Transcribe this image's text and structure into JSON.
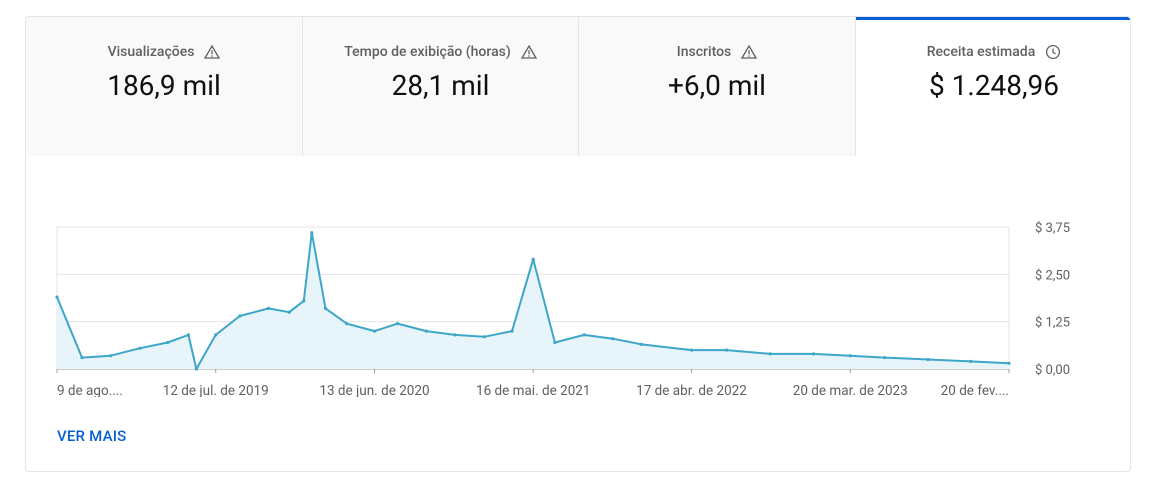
{
  "metrics": [
    {
      "label": "Visualizações",
      "value": "186,9 mil",
      "icon": "warning-icon"
    },
    {
      "label": "Tempo de exibição (horas)",
      "value": "28,1 mil",
      "icon": "warning-icon"
    },
    {
      "label": "Inscritos",
      "value": "+6,0 mil",
      "icon": "warning-icon"
    },
    {
      "label": "Receita estimada",
      "value": "$ 1.248,96",
      "icon": "clock-icon"
    }
  ],
  "colors": {
    "accent": "#065fd4",
    "line": "#3ea6c8",
    "fill": "#e7f4fa",
    "grid": "#e5e5e5"
  },
  "chart_data": {
    "type": "line",
    "title": "",
    "xlabel": "",
    "ylabel": "",
    "y_ticks": [
      "$ 0,00",
      "$ 1,25",
      "$ 2,50",
      "$ 3,75"
    ],
    "y_tick_values": [
      0,
      1.25,
      2.5,
      3.75
    ],
    "ylim": [
      0,
      3.75
    ],
    "x_ticks": [
      "9 de ago....",
      "12 de jul. de 2019",
      "13 de jun. de 2020",
      "16 de mai. de 2021",
      "17 de abr. de 2022",
      "20 de mar. de 2023",
      "20 de fev...."
    ],
    "x_tick_dates": [
      "2018-08-09",
      "2019-07-12",
      "2020-06-13",
      "2021-05-16",
      "2022-04-17",
      "2023-03-20",
      "2024-02-20"
    ],
    "grid": true,
    "series": [
      {
        "x": [
          "2018-08-09",
          "2018-10-01",
          "2018-12-01",
          "2019-02-01",
          "2019-04-01",
          "2019-05-15",
          "2019-06-01",
          "2019-07-12",
          "2019-09-01",
          "2019-11-01",
          "2019-12-15",
          "2020-01-15",
          "2020-02-01",
          "2020-03-01",
          "2020-04-15",
          "2020-06-13",
          "2020-08-01",
          "2020-10-01",
          "2020-12-01",
          "2021-02-01",
          "2021-04-01",
          "2021-05-16",
          "2021-07-01",
          "2021-09-01",
          "2021-11-01",
          "2022-01-01",
          "2022-04-17",
          "2022-07-01",
          "2022-10-01",
          "2023-01-01",
          "2023-03-20",
          "2023-06-01",
          "2023-09-01",
          "2023-12-01",
          "2024-02-20"
        ],
        "values": [
          1.9,
          0.3,
          0.35,
          0.55,
          0.7,
          0.9,
          0.0,
          0.9,
          1.4,
          1.6,
          1.5,
          1.8,
          3.6,
          1.6,
          1.2,
          1.0,
          1.2,
          1.0,
          0.9,
          0.85,
          1.0,
          2.9,
          0.7,
          0.9,
          0.8,
          0.65,
          0.5,
          0.5,
          0.4,
          0.4,
          0.35,
          0.3,
          0.25,
          0.2,
          0.15
        ]
      }
    ]
  },
  "footer": {
    "more_label": "VER MAIS"
  }
}
